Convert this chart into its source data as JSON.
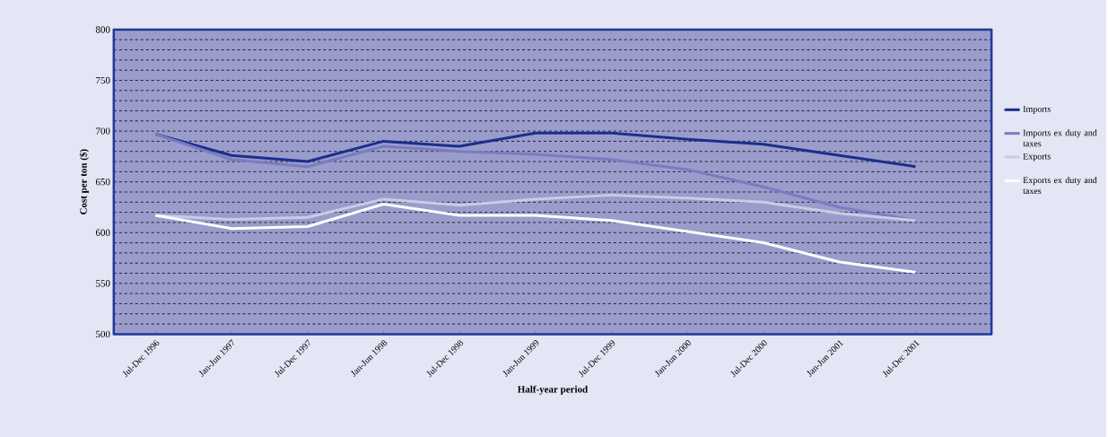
{
  "chart_data": {
    "type": "line",
    "xlabel": "Half-year period",
    "ylabel": "Cost per ton ($)",
    "categories": [
      "Jul-Dec 1996",
      "Jan-Jun 1997",
      "Jul-Dec 1997",
      "Jan-Jun 1998",
      "Jul-Dec 1998",
      "Jan-Jun 1999",
      "Jul-Dec 1999",
      "Jan-Jun 2000",
      "Jul-Dec 2000",
      "Jan-Jun 2001",
      "Jul-Dec 2001"
    ],
    "series": [
      {
        "name": "Imports",
        "color": "#1a2f8c",
        "values": [
          697,
          676,
          670,
          690,
          685,
          698,
          698,
          692,
          687,
          676,
          665
        ]
      },
      {
        "name": "Imports ex duty and taxes",
        "color": "#7a7cc0",
        "values": [
          697,
          672,
          665,
          685,
          680,
          677,
          672,
          662,
          645,
          625,
          612
        ]
      },
      {
        "name": "Exports",
        "color": "#c8cde6",
        "values": [
          617,
          613,
          615,
          633,
          627,
          633,
          637,
          634,
          630,
          619,
          612
        ]
      },
      {
        "name": "Exports ex duty and taxes",
        "color": "#ffffff",
        "values": [
          617,
          604,
          606,
          628,
          617,
          617,
          612,
          601,
          590,
          571,
          561
        ]
      }
    ],
    "ylim": [
      500,
      800
    ],
    "yticks": [
      500,
      550,
      600,
      650,
      700,
      750,
      800
    ],
    "grid": "y",
    "legend": "right",
    "marker": "none",
    "line_style": "solid"
  }
}
